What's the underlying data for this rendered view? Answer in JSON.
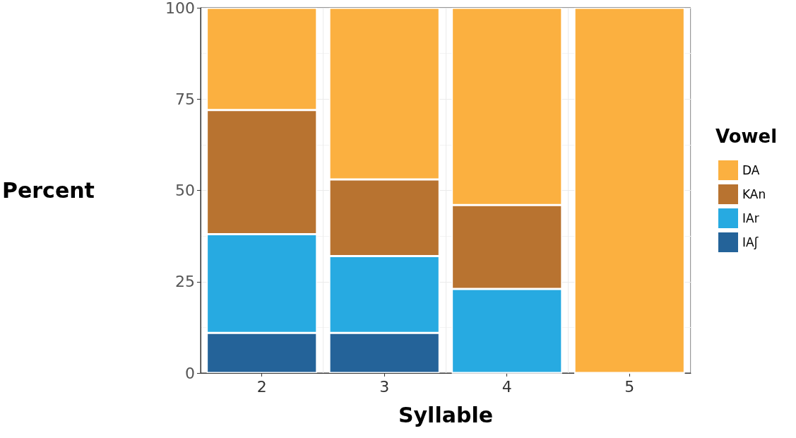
{
  "chart_data": {
    "type": "bar",
    "stacked": true,
    "xlabel": "Syllable",
    "ylabel": "Percent",
    "legend_title": "Vowel",
    "legend": "right",
    "grid": true,
    "categories": [
      "2",
      "3",
      "4",
      "5"
    ],
    "ylim": [
      0,
      100
    ],
    "yticks": [
      0,
      25,
      50,
      75,
      100
    ],
    "series": [
      {
        "name": "IAʃ",
        "color": "#246399",
        "values": [
          11,
          11,
          0,
          0
        ]
      },
      {
        "name": "IAr",
        "color": "#27aae1",
        "values": [
          27,
          21,
          23,
          0
        ]
      },
      {
        "name": "KAn",
        "color": "#b87330",
        "values": [
          34,
          21,
          23,
          0
        ]
      },
      {
        "name": "DA",
        "color": "#fbb040",
        "values": [
          28,
          47,
          54,
          100
        ]
      }
    ]
  }
}
